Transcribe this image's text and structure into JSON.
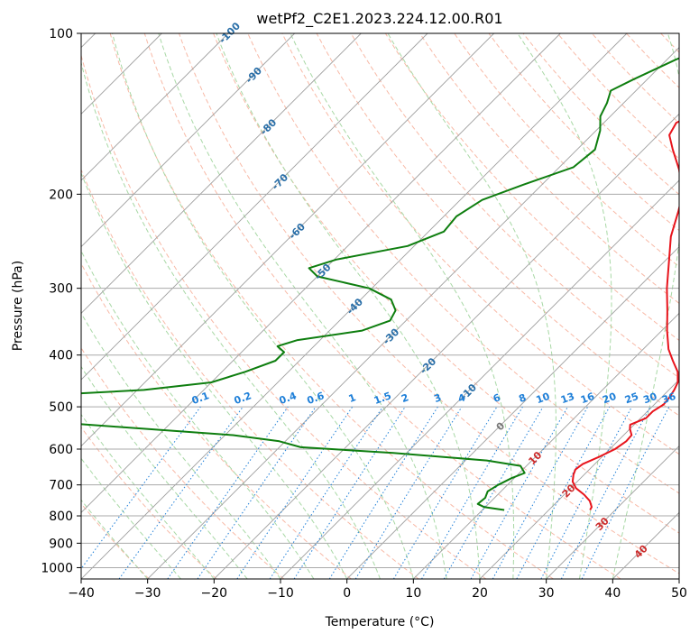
{
  "chart_data": {
    "type": "line",
    "subtype": "skew-T log-P diagram",
    "title": "wetPf2_C2E1.2023.224.12.00.R01",
    "xlabel": "Temperature (°C)",
    "ylabel": "Pressure (hPa)",
    "xlim": [
      -40,
      50
    ],
    "ylim": [
      1050,
      100
    ],
    "y_scale": "log",
    "grid": true,
    "x_ticks": [
      "−40",
      "−30",
      "−20",
      "−10",
      "0",
      "10",
      "20",
      "30",
      "40",
      "50"
    ],
    "y_ticks": [
      "100",
      "200",
      "300",
      "400",
      "500",
      "600",
      "700",
      "800",
      "900",
      "1000"
    ],
    "series": [
      {
        "role": "temperature",
        "color": "#e8141c",
        "points": [
          [
            780,
            26.2
          ],
          [
            770,
            26.0
          ],
          [
            750,
            24.8
          ],
          [
            730,
            23.0
          ],
          [
            710,
            20.8
          ],
          [
            690,
            19.3
          ],
          [
            670,
            18.4
          ],
          [
            655,
            17.9
          ],
          [
            640,
            18.2
          ],
          [
            620,
            19.6
          ],
          [
            600,
            20.8
          ],
          [
            580,
            21.3
          ],
          [
            565,
            21.2
          ],
          [
            550,
            20.0
          ],
          [
            540,
            19.4
          ],
          [
            525,
            20.8
          ],
          [
            510,
            20.8
          ],
          [
            495,
            21.4
          ],
          [
            480,
            21.2
          ],
          [
            465,
            20.8
          ],
          [
            450,
            20.2
          ],
          [
            430,
            18.6
          ],
          [
            410,
            16.2
          ],
          [
            390,
            13.8
          ],
          [
            360,
            10.8
          ],
          [
            330,
            7.8
          ],
          [
            300,
            4.4
          ],
          [
            270,
            1.0
          ],
          [
            240,
            -2.8
          ],
          [
            215,
            -5.5
          ],
          [
            200,
            -7.4
          ],
          [
            180,
            -11.6
          ],
          [
            165,
            -15.6
          ],
          [
            155,
            -18.3
          ],
          [
            147,
            -19.1
          ],
          [
            142,
            -17.8
          ],
          [
            137,
            -15.0
          ],
          [
            132,
            -12.7
          ],
          [
            126,
            -12.2
          ],
          [
            118,
            -13.3
          ],
          [
            110,
            -15.8
          ],
          [
            104,
            -18.0
          ],
          [
            100,
            -19.5
          ]
        ]
      },
      {
        "role": "dewpoint",
        "color": "#0e7e0f",
        "points": [
          [
            780,
            13.3
          ],
          [
            770,
            9.8
          ],
          [
            760,
            8.4
          ],
          [
            740,
            8.6
          ],
          [
            720,
            8.0
          ],
          [
            700,
            8.6
          ],
          [
            680,
            9.6
          ],
          [
            665,
            10.8
          ],
          [
            645,
            9.1
          ],
          [
            630,
            3.2
          ],
          [
            610,
            -12.0
          ],
          [
            595,
            -26.8
          ],
          [
            580,
            -30.9
          ],
          [
            565,
            -38.8
          ],
          [
            545,
            -57.5
          ],
          [
            530,
            -72.0
          ],
          [
            500,
            -75.0
          ],
          [
            475,
            -72.0
          ],
          [
            465,
            -59.0
          ],
          [
            450,
            -50.0
          ],
          [
            430,
            -46.5
          ],
          [
            410,
            -43.6
          ],
          [
            395,
            -43.6
          ],
          [
            385,
            -45.5
          ],
          [
            375,
            -43.4
          ],
          [
            360,
            -35.1
          ],
          [
            345,
            -32.4
          ],
          [
            330,
            -33.1
          ],
          [
            315,
            -35.4
          ],
          [
            300,
            -40.4
          ],
          [
            285,
            -50.0
          ],
          [
            275,
            -52.5
          ],
          [
            265,
            -49.7
          ],
          [
            250,
            -41.0
          ],
          [
            235,
            -37.7
          ],
          [
            220,
            -38.1
          ],
          [
            205,
            -36.7
          ],
          [
            192,
            -32.8
          ],
          [
            178,
            -27.9
          ],
          [
            165,
            -27.3
          ],
          [
            152,
            -29.4
          ],
          [
            143,
            -31.5
          ],
          [
            135,
            -32.5
          ],
          [
            128,
            -33.8
          ],
          [
            122,
            -32.1
          ],
          [
            112,
            -28.7
          ],
          [
            104,
            -25.0
          ],
          [
            100,
            -23.3
          ]
        ]
      }
    ],
    "isotherm_labels": [
      "-100",
      "-90",
      "-80",
      "-70",
      "-60",
      "-50",
      "-40",
      "-30",
      "-20",
      "-10",
      "0",
      "10",
      "20",
      "30",
      "40"
    ],
    "mixing_ratio_labels": [
      "0.1",
      "0.2",
      "0.4",
      "0.6",
      "1",
      "1.5",
      "2",
      "3",
      "4",
      "6",
      "8",
      "10",
      "13",
      "16",
      "20",
      "25",
      "30",
      "36"
    ]
  }
}
